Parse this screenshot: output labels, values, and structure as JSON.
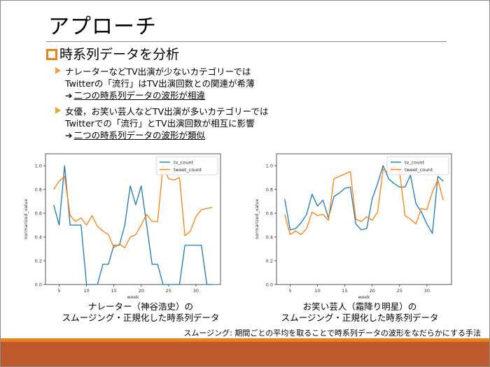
{
  "slide": {
    "title": "アプローチ",
    "section_heading": "時系列データを分析",
    "bullets": [
      {
        "line1": "ナレーターなどTV出演が少ないカテゴリーでは",
        "line2": "Twitterの「流行」はTV出演回数との関連が希薄",
        "arrow": "➔",
        "conclusion": "二つの時系列データの波形が相違"
      },
      {
        "line1": "女優，お笑い芸人などTV出演が多いカテゴリーでは",
        "line2": "Twitterでの「流行」とTV出演回数が相互に影響",
        "arrow": "➔",
        "conclusion": "二つの時系列データの波形が類似"
      }
    ],
    "captions": [
      {
        "line1": "ナレーター（神谷浩史）の",
        "line2": "スムージング・正規化した時系列データ"
      },
      {
        "line1": "お笑い芸人（霜降り明星）の",
        "line2": "スムージング・正規化した時系列データ"
      }
    ],
    "footnote": "スムージング: 期間ごとの平均を取ることで時系列データの波形をなだらかにする手法",
    "colors": {
      "accent_orange": "#E8821A",
      "footer_dark": "#BE582D",
      "tv_count": "#1f77b4",
      "tweet_count": "#ff7f0e"
    }
  },
  "chart_data": [
    {
      "type": "line",
      "title": "",
      "xlabel": "week",
      "ylabel": "normarized_value",
      "xlim": [
        2.5,
        34.5
      ],
      "ylim": [
        0.0,
        1.1
      ],
      "xticks": [
        5,
        10,
        15,
        20,
        25,
        30
      ],
      "yticks": [
        "0.0",
        "0.2",
        "0.4",
        "0.6",
        "0.8",
        "1.0"
      ],
      "legend_position": "upper right",
      "grid": false,
      "x": [
        4,
        5,
        6,
        7,
        8,
        9,
        10,
        11,
        12,
        13,
        14,
        15,
        16,
        17,
        18,
        19,
        20,
        21,
        22,
        23,
        24,
        25,
        26,
        27,
        28,
        29,
        30,
        31,
        32,
        33
      ],
      "series": [
        {
          "name": "tv_count",
          "color": "#1f77b4",
          "values": [
            0.67,
            0.5,
            1.0,
            0.5,
            0.5,
            0.5,
            0.0,
            0.0,
            0.0,
            0.17,
            0.17,
            0.33,
            0.33,
            0.5,
            0.83,
            0.67,
            0.83,
            0.5,
            0.17,
            0.17,
            0.0,
            0.0,
            0.0,
            0.0,
            0.33,
            0.33,
            0.33,
            0.33,
            0.0,
            0.0
          ]
        },
        {
          "name": "tweet_count",
          "color": "#ff7f0e",
          "values": [
            0.8,
            0.87,
            0.91,
            0.58,
            0.53,
            0.56,
            0.5,
            0.58,
            0.49,
            0.45,
            0.42,
            0.31,
            0.34,
            0.31,
            0.4,
            0.42,
            0.5,
            0.59,
            0.53,
            0.53,
            1.0,
            0.89,
            0.88,
            0.9,
            0.41,
            0.45,
            0.57,
            0.63,
            0.64,
            0.65
          ]
        }
      ]
    },
    {
      "type": "line",
      "title": "",
      "xlabel": "week",
      "ylabel": "normarized_value",
      "xlim": [
        2.5,
        34.5
      ],
      "ylim": [
        0.0,
        1.1
      ],
      "xticks": [
        5,
        10,
        15,
        20,
        25,
        30
      ],
      "yticks": [
        "0.0",
        "0.2",
        "0.4",
        "0.6",
        "0.8",
        "1.0"
      ],
      "legend_position": "upper right",
      "grid": false,
      "x": [
        4,
        5,
        6,
        7,
        8,
        9,
        10,
        11,
        12,
        13,
        14,
        15,
        16,
        17,
        18,
        19,
        20,
        21,
        22,
        23,
        24,
        25,
        26,
        27,
        28,
        29,
        30,
        31,
        32,
        33
      ],
      "series": [
        {
          "name": "tv_count",
          "color": "#1f77b4",
          "values": [
            0.72,
            0.46,
            0.47,
            0.52,
            0.59,
            0.76,
            0.66,
            0.71,
            0.56,
            0.74,
            0.77,
            0.81,
            0.82,
            0.51,
            0.46,
            0.47,
            0.72,
            0.85,
            1.0,
            0.89,
            0.85,
            0.82,
            0.82,
            0.92,
            0.68,
            0.61,
            0.51,
            0.43,
            0.91,
            0.87
          ]
        },
        {
          "name": "tweet_count",
          "color": "#ff7f0e",
          "values": [
            0.59,
            0.42,
            0.45,
            0.42,
            0.47,
            0.61,
            0.58,
            0.59,
            0.54,
            0.89,
            0.91,
            0.93,
            0.95,
            0.55,
            0.53,
            0.57,
            0.54,
            0.61,
            0.97,
            0.94,
            1.0,
            0.95,
            0.58,
            0.55,
            0.51,
            0.64,
            0.63,
            0.78,
            0.88,
            0.71
          ]
        }
      ]
    }
  ]
}
